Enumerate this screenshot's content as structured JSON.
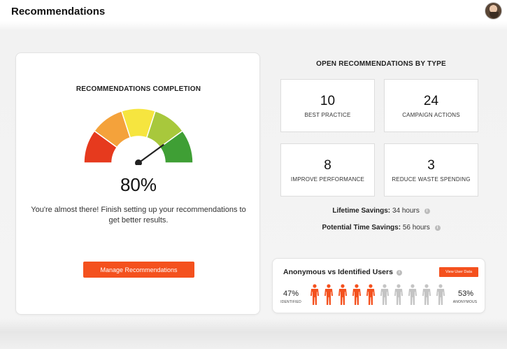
{
  "header": {
    "title": "Recommendations",
    "avatar_icon": "user-avatar-icon"
  },
  "completion": {
    "heading": "RECOMMENDATIONS COMPLETION",
    "percent_value": 80,
    "percent_label": "80%",
    "message": "You're almost there! Finish setting up your recommendations to get better results.",
    "button_label": "Manage Recommendations",
    "gauge_colors": [
      "#e63a1e",
      "#f4a23b",
      "#f6e53f",
      "#a8c83c",
      "#3f9f35"
    ]
  },
  "open_recommendations": {
    "heading": "OPEN RECOMMENDATIONS BY TYPE",
    "items": [
      {
        "count": "10",
        "label": "BEST PRACTICE"
      },
      {
        "count": "24",
        "label": "CAMPAIGN ACTIONS"
      },
      {
        "count": "8",
        "label": "IMPROVE PERFORMANCE"
      },
      {
        "count": "3",
        "label": "REDUCE WASTE SPENDING"
      }
    ]
  },
  "savings": {
    "lifetime_label": "Lifetime Savings:",
    "lifetime_value": "34 hours",
    "potential_label": "Potential Time Savings:",
    "potential_value": "56 hours"
  },
  "users": {
    "title": "Anonymous vs Identified Users",
    "button_label": "View User Data",
    "identified_percent": "47%",
    "identified_label": "IDENTIFIED",
    "anonymous_percent": "53%",
    "anonymous_label": "ANONYMOUS",
    "identified_count": 5,
    "anonymous_count": 5,
    "identified_color": "#f4511e",
    "anonymous_color": "#c4c4c4"
  },
  "colors": {
    "accent": "#f4511e"
  }
}
